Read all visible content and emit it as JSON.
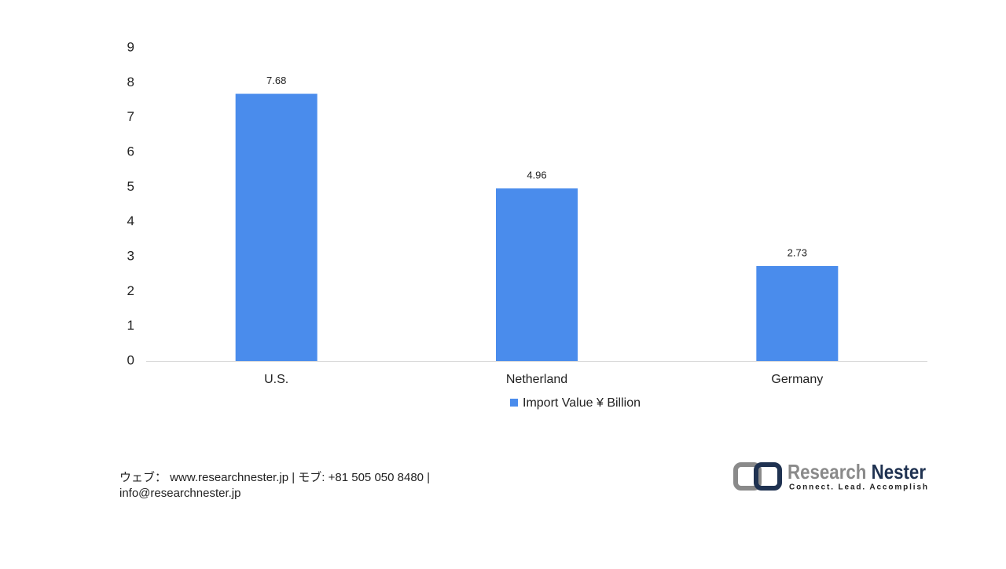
{
  "chart_data": {
    "type": "bar",
    "categories": [
      "U.S.",
      "Netherland",
      "Germany"
    ],
    "series": [
      {
        "name": "Import Value ¥ Billion",
        "color": "#4a8cec",
        "values": [
          7.68,
          4.96,
          2.73
        ]
      }
    ],
    "ylim": [
      0,
      9
    ],
    "yticks": [
      0,
      1,
      2,
      3,
      4,
      5,
      6,
      7,
      8,
      9
    ],
    "grid": false,
    "legend": "bottom"
  },
  "footer": {
    "lines": [
      "ウェブ： www.researchnester.jp | モブ: +81 505 050 8480 |",
      "info@researchnester.jp"
    ]
  },
  "logo": {
    "name_first": "Research",
    "name_second": "Nester",
    "tagline": "Connect. Lead. Accomplish"
  }
}
